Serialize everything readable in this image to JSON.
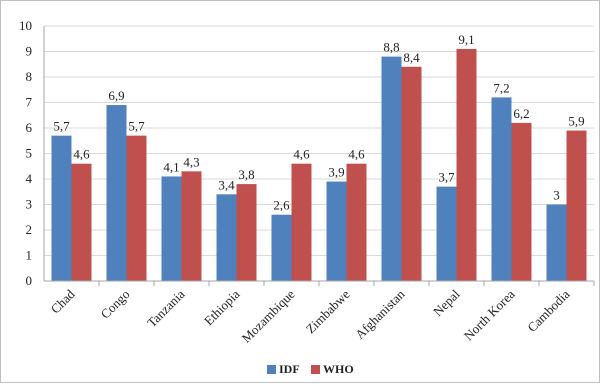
{
  "chart_data": {
    "type": "bar",
    "categories": [
      "Chad",
      "Congo",
      "Tanzania",
      "Ethiopia",
      "Mozambique",
      "Zimbabwe",
      "Afghanistan",
      "Nepal",
      "North Korea",
      "Cambodia"
    ],
    "series": [
      {
        "name": "IDF",
        "values": [
          5.7,
          6.9,
          4.1,
          3.4,
          2.6,
          3.9,
          8.8,
          3.7,
          7.2,
          3
        ],
        "labels": [
          "5,7",
          "6,9",
          "4,1",
          "3,4",
          "2,6",
          "3,9",
          "8,8",
          "3,7",
          "7,2",
          "3"
        ],
        "color": "#4F81BD"
      },
      {
        "name": "WHO",
        "values": [
          4.6,
          5.7,
          4.3,
          3.8,
          4.6,
          4.6,
          8.4,
          9.1,
          6.2,
          5.9
        ],
        "labels": [
          "4,6",
          "5,7",
          "4,3",
          "3,8",
          "4,6",
          "4,6",
          "8,4",
          "9,1",
          "6,2",
          "5,9"
        ],
        "color": "#C0504D"
      }
    ],
    "yticks": [
      "0",
      "1",
      "2",
      "3",
      "4",
      "5",
      "6",
      "7",
      "8",
      "9",
      "10"
    ],
    "ylim": [
      0,
      10
    ],
    "grid": true,
    "legend_position": "bottom",
    "title": "",
    "xlabel": "",
    "ylabel": ""
  }
}
